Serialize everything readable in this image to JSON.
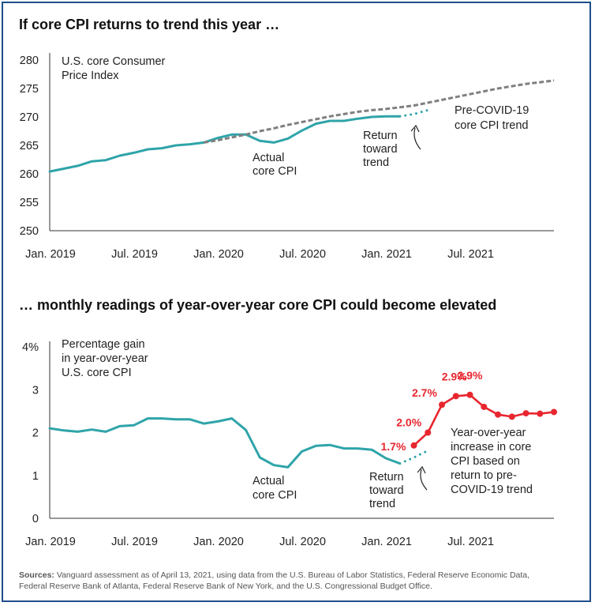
{
  "colors": {
    "actual": "#2fa4a9",
    "trend": "#808080",
    "projection": "#e8262f",
    "frame": "#1f4e8c"
  },
  "top_heading": "If core CPI returns to trend this year …",
  "bottom_heading": "… monthly readings of year-over-year core CPI could become elevated",
  "sources": {
    "label": "Sources:",
    "line1": " Vanguard assessment as of April 13, 2021, using data from the U.S. Bureau of Labor Statistics, Federal Reserve Economic Data,",
    "line2": "Federal Reserve Bank of Atlanta, Federal Reserve Bank of New York, and the U.S. Congressional Budget Office."
  },
  "chart_data": [
    {
      "type": "line",
      "title": "If core CPI returns to trend this year …",
      "ylabel_lines": [
        "U.S. core Consumer",
        "Price Index"
      ],
      "x_tick_labels": [
        "Jan. 2019",
        "Jul. 2019",
        "Jan. 2020",
        "Jul. 2020",
        "Jan. 2021",
        "Jul. 2021"
      ],
      "ylim": [
        250,
        280
      ],
      "y_ticks": [
        250,
        255,
        260,
        265,
        270,
        275,
        280
      ],
      "xlim": [
        0,
        36
      ],
      "annotations": {
        "actual": [
          "Actual",
          "core CPI"
        ],
        "return": [
          "Return",
          "toward",
          "trend"
        ],
        "trend": [
          "Pre-COVID-19",
          "core CPI trend"
        ]
      },
      "series": [
        {
          "key": "actual",
          "x": [
            0,
            1,
            2,
            3,
            4,
            5,
            6,
            7,
            8,
            9,
            10,
            11,
            12,
            13,
            14,
            15,
            16,
            17,
            18,
            19,
            20,
            21,
            22,
            23,
            24,
            25
          ],
          "y": [
            260.4,
            260.9,
            261.4,
            262.2,
            262.4,
            263.2,
            263.7,
            264.3,
            264.5,
            265.0,
            265.2,
            265.5,
            266.3,
            266.9,
            266.9,
            265.8,
            265.5,
            266.2,
            267.6,
            268.8,
            269.3,
            269.3,
            269.7,
            270.0,
            270.1,
            270.1
          ]
        },
        {
          "key": "return",
          "x": [
            25,
            26,
            27
          ],
          "y": [
            270.1,
            270.5,
            271.2
          ]
        },
        {
          "key": "trend",
          "x": [
            11,
            12,
            13,
            14,
            15,
            16,
            17,
            18,
            19,
            20,
            21,
            22,
            23,
            24,
            25,
            26,
            27,
            28,
            29,
            30,
            31,
            32,
            33,
            34,
            35,
            36
          ],
          "y": [
            265.5,
            265.9,
            266.4,
            266.9,
            267.5,
            268.0,
            268.6,
            269.1,
            269.6,
            270.1,
            270.5,
            270.9,
            271.2,
            271.4,
            271.7,
            272.0,
            272.5,
            273.0,
            273.5,
            274.0,
            274.5,
            275.0,
            275.4,
            275.8,
            276.1,
            276.4
          ]
        }
      ]
    },
    {
      "type": "line",
      "title": "… monthly readings of year-over-year core CPI could become elevated",
      "ylabel_lines": [
        "Percentage gain",
        "in year-over-year",
        "U.S. core CPI"
      ],
      "x_tick_labels": [
        "Jan. 2019",
        "Jul. 2019",
        "Jan. 2020",
        "Jul. 2020",
        "Jan. 2021",
        "Jul. 2021"
      ],
      "y_tick_labels": [
        "0",
        "1",
        "2",
        "3",
        "4%"
      ],
      "ylim": [
        0,
        4
      ],
      "xlim": [
        0,
        36
      ],
      "annotations": {
        "actual": [
          "Actual",
          "core CPI"
        ],
        "return": [
          "Return",
          "toward",
          "trend"
        ],
        "projection": [
          "Year-over-year",
          "increase in core",
          "CPI based on",
          "return to pre-",
          "COVID-19 trend"
        ]
      },
      "series": [
        {
          "key": "actual",
          "x": [
            0,
            1,
            2,
            3,
            4,
            5,
            6,
            7,
            8,
            9,
            10,
            11,
            12,
            13,
            14,
            15,
            16,
            17,
            18,
            19,
            20,
            21,
            22,
            23,
            24,
            25
          ],
          "y": [
            2.1,
            2.05,
            2.02,
            2.07,
            2.02,
            2.15,
            2.17,
            2.33,
            2.33,
            2.31,
            2.31,
            2.21,
            2.26,
            2.33,
            2.06,
            1.42,
            1.24,
            1.19,
            1.56,
            1.69,
            1.71,
            1.63,
            1.63,
            1.6,
            1.4,
            1.28
          ]
        },
        {
          "key": "return",
          "x": [
            25,
            26,
            27
          ],
          "y": [
            1.28,
            1.42,
            1.58
          ]
        },
        {
          "key": "projection",
          "x": [
            26,
            27,
            28,
            29,
            30,
            31,
            32,
            33,
            34,
            35,
            36
          ],
          "y": [
            1.7,
            2.0,
            2.65,
            2.85,
            2.88,
            2.6,
            2.42,
            2.37,
            2.45,
            2.44,
            2.48
          ],
          "labels": [
            "1.7%",
            "2.0%",
            "2.7%",
            "2.9%",
            "2.9%"
          ]
        }
      ]
    }
  ]
}
